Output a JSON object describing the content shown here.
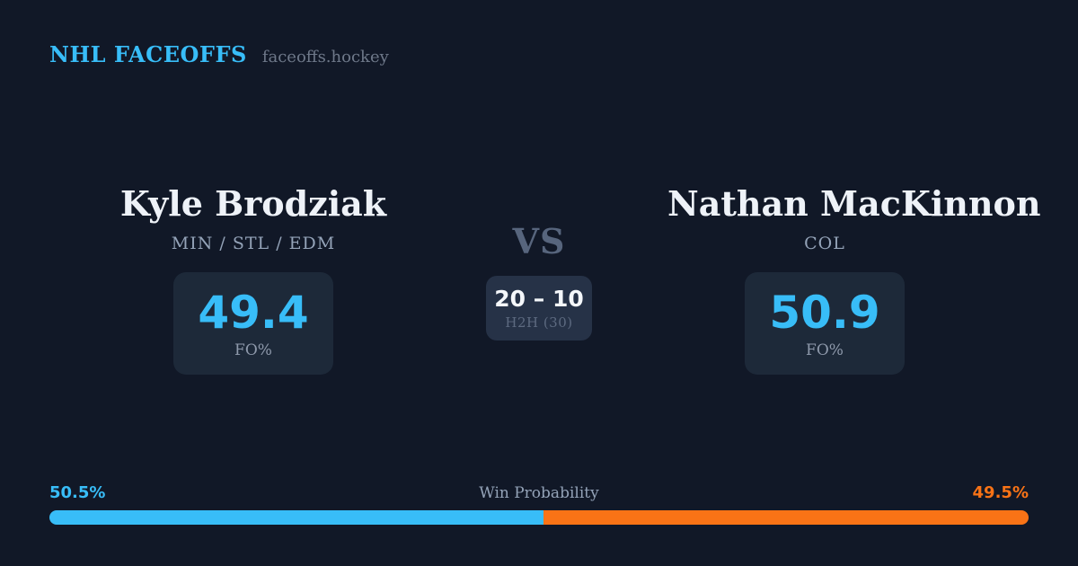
{
  "brand": {
    "title": "NHL FACEOFFS",
    "site": "faceoffs.hockey"
  },
  "players": {
    "left": {
      "name": "Kyle Brodziak",
      "teams": "MIN / STL / EDM",
      "fo_value": "49.4",
      "fo_label": "FO%"
    },
    "right": {
      "name": "Nathan MacKinnon",
      "teams": "COL",
      "fo_value": "50.9",
      "fo_label": "FO%"
    }
  },
  "center": {
    "vs_label": "VS",
    "h2h_score": "20 – 10",
    "h2h_label": "H2H (30)"
  },
  "win_probability": {
    "title": "Win Probability",
    "left_value": "50.5%",
    "right_value": "49.5%",
    "left_width": "50.5%"
  },
  "colors": {
    "background": "#111827",
    "fo_card": "#1d2939",
    "h2h_card": "#263247",
    "accent_blue": "#38bdf8",
    "accent_orange": "#f97316",
    "muted_slate": "#94a3b8",
    "vs_slate": "#57657d"
  },
  "chart_data": {
    "type": "bar",
    "title": "Win Probability",
    "categories": [
      "Kyle Brodziak",
      "Nathan MacKinnon"
    ],
    "values": [
      50.5,
      49.5
    ],
    "unit": "%",
    "notes": "single stacked horizontal bar, blue=left player, orange=right player"
  }
}
